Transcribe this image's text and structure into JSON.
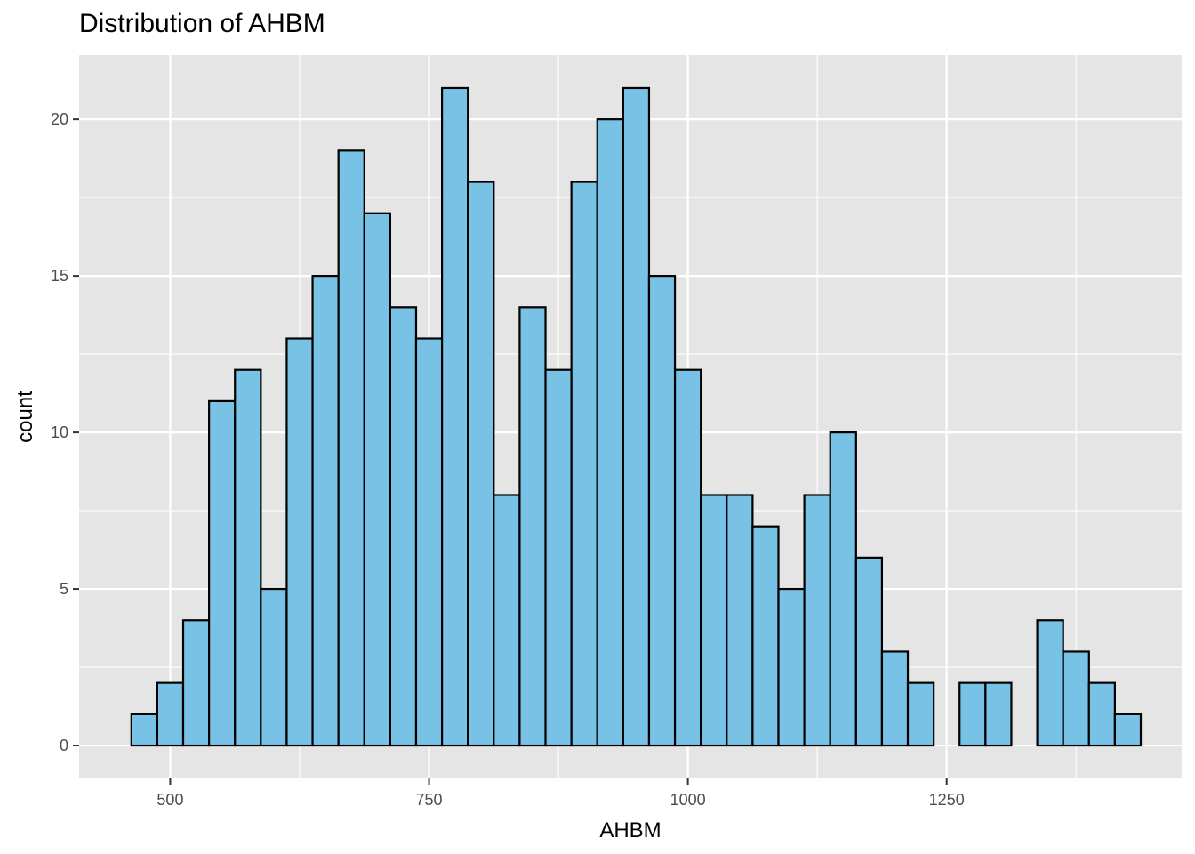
{
  "chart_data": {
    "type": "bar",
    "title": "Distribution of AHBM",
    "xlabel": "AHBM",
    "ylabel": "count",
    "bin_width": 25,
    "bin_start": 462.5,
    "counts": [
      1,
      2,
      4,
      11,
      12,
      5,
      13,
      15,
      19,
      17,
      14,
      13,
      21,
      18,
      8,
      14,
      12,
      18,
      20,
      21,
      15,
      12,
      8,
      8,
      7,
      5,
      8,
      10,
      6,
      3,
      2,
      0,
      2,
      2,
      0,
      4,
      3,
      2,
      1
    ],
    "xlim": [
      412,
      1477
    ],
    "ylim": [
      -1.05,
      22.05
    ],
    "x_ticks": [
      500,
      750,
      1000,
      1250
    ],
    "x_tick_labels": [
      "500",
      "750",
      "1000",
      "1250"
    ],
    "y_ticks": [
      0,
      5,
      10,
      15,
      20
    ],
    "y_tick_labels": [
      "0",
      "5",
      "10",
      "15",
      "20"
    ],
    "grid": true,
    "colors": {
      "panel_background": "#e5e5e5",
      "grid": "#ffffff",
      "bar_fill": "#78c2e5",
      "bar_outline": "#000000",
      "tick_label": "#4d4d4d"
    }
  }
}
